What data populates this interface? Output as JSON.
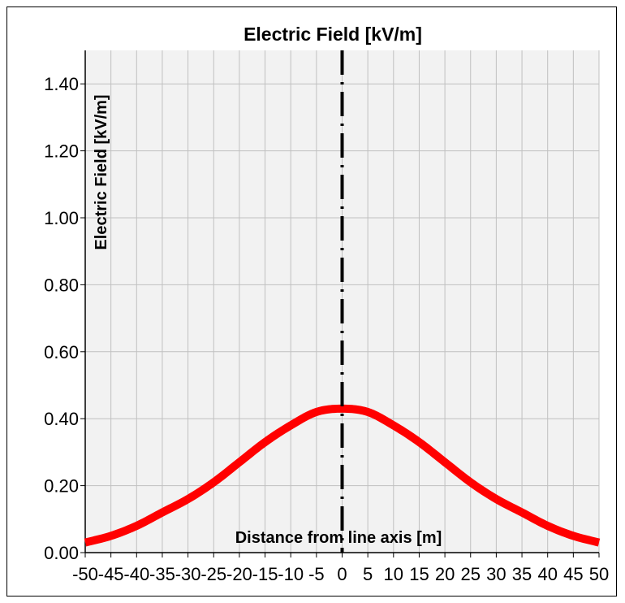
{
  "chart_data": {
    "type": "line",
    "title": "Electric Field [kV/m]",
    "xlabel": "Distance from line axis [m]",
    "ylabel": "Electric Field  [kV/m]",
    "xlim": [
      -50,
      50
    ],
    "ylim": [
      0,
      1.5
    ],
    "grid": true,
    "legend": "none",
    "x_ticks": [
      "-50",
      "-45",
      "-40",
      "-35",
      "-30",
      "-25",
      "-20",
      "-15",
      "-10",
      "-5",
      "0",
      "5",
      "10",
      "15",
      "20",
      "25",
      "30",
      "35",
      "40",
      "45",
      "50"
    ],
    "y_ticks": [
      "0.00",
      "0.20",
      "0.40",
      "0.60",
      "0.80",
      "1.00",
      "1.20",
      "1.40"
    ],
    "x_tick_values": [
      -50,
      -45,
      -40,
      -35,
      -30,
      -25,
      -20,
      -15,
      -10,
      -5,
      0,
      5,
      10,
      15,
      20,
      25,
      30,
      35,
      40,
      45,
      50
    ],
    "y_tick_values": [
      0,
      0.2,
      0.4,
      0.6,
      0.8,
      1.0,
      1.2,
      1.4
    ],
    "series": [
      {
        "color": "#ff0000",
        "x": [
          -50,
          -45,
          -40,
          -35,
          -30,
          -25,
          -20,
          -15,
          -10,
          -5,
          0,
          5,
          10,
          15,
          20,
          25,
          30,
          35,
          40,
          45,
          50
        ],
        "values": [
          0.03,
          0.05,
          0.08,
          0.12,
          0.16,
          0.21,
          0.27,
          0.33,
          0.38,
          0.42,
          0.43,
          0.42,
          0.38,
          0.33,
          0.27,
          0.21,
          0.16,
          0.12,
          0.08,
          0.05,
          0.03
        ]
      }
    ],
    "vertical_line": {
      "x": 0,
      "style": "dash-dot",
      "color": "#000000"
    },
    "plot_background": "#f2f2f2",
    "grid_color": "#c0c0c0"
  }
}
